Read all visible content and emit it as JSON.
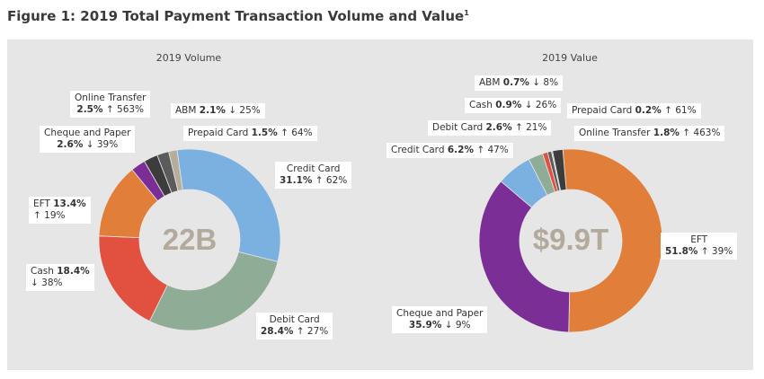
{
  "figure": {
    "title": "Figure 1: 2019 Total Payment Transaction Volume and Value",
    "footnote_marker": "1"
  },
  "colors": {
    "credit_card": "#7ab1e0",
    "debit_card": "#8fac97",
    "cash": "#e2503f",
    "eft": "#e07e3a",
    "cheque_and_paper": "#7b2e96",
    "online_transfer": "#3c3c3c",
    "abm": "#5b5b5b",
    "prepaid_card": "#b6ad9a",
    "center_text": "#b3aa9b"
  },
  "chart_data": [
    {
      "type": "pie",
      "title": "2019 Volume",
      "center_label": "22B",
      "slices": [
        {
          "name": "Credit Card",
          "value": 31.1,
          "change": "↑ 62%",
          "color_key": "credit_card"
        },
        {
          "name": "Debit Card",
          "value": 28.4,
          "change": "↑ 27%",
          "color_key": "debit_card"
        },
        {
          "name": "Cash",
          "value": 18.4,
          "change": "↓ 38%",
          "color_key": "cash"
        },
        {
          "name": "EFT",
          "value": 13.4,
          "change": "↑ 19%",
          "color_key": "eft"
        },
        {
          "name": "Cheque and Paper",
          "value": 2.6,
          "change": "↓ 39%",
          "color_key": "cheque_and_paper"
        },
        {
          "name": "Online Transfer",
          "value": 2.5,
          "change": "↑ 563%",
          "color_key": "online_transfer"
        },
        {
          "name": "ABM",
          "value": 2.1,
          "change": "↓ 25%",
          "color_key": "abm"
        },
        {
          "name": "Prepaid Card",
          "value": 1.5,
          "change": "↑ 64%",
          "color_key": "prepaid_card"
        }
      ]
    },
    {
      "type": "pie",
      "title": "2019 Value",
      "center_label": "$9.9T",
      "slices": [
        {
          "name": "EFT",
          "value": 51.8,
          "change": "↑ 39%",
          "color_key": "eft"
        },
        {
          "name": "Cheque and Paper",
          "value": 35.9,
          "change": "↓ 9%",
          "color_key": "cheque_and_paper"
        },
        {
          "name": "Credit Card",
          "value": 6.2,
          "change": "↑ 47%",
          "color_key": "credit_card"
        },
        {
          "name": "Debit Card",
          "value": 2.6,
          "change": "↑ 21%",
          "color_key": "debit_card"
        },
        {
          "name": "Cash",
          "value": 0.9,
          "change": "↓ 26%",
          "color_key": "cash"
        },
        {
          "name": "ABM",
          "value": 0.7,
          "change": "↓ 8%",
          "color_key": "abm"
        },
        {
          "name": "Prepaid Card",
          "value": 0.2,
          "change": "↑ 61%",
          "color_key": "prepaid_card"
        },
        {
          "name": "Online Transfer",
          "value": 1.8,
          "change": "↑ 463%",
          "color_key": "online_transfer"
        }
      ]
    }
  ]
}
